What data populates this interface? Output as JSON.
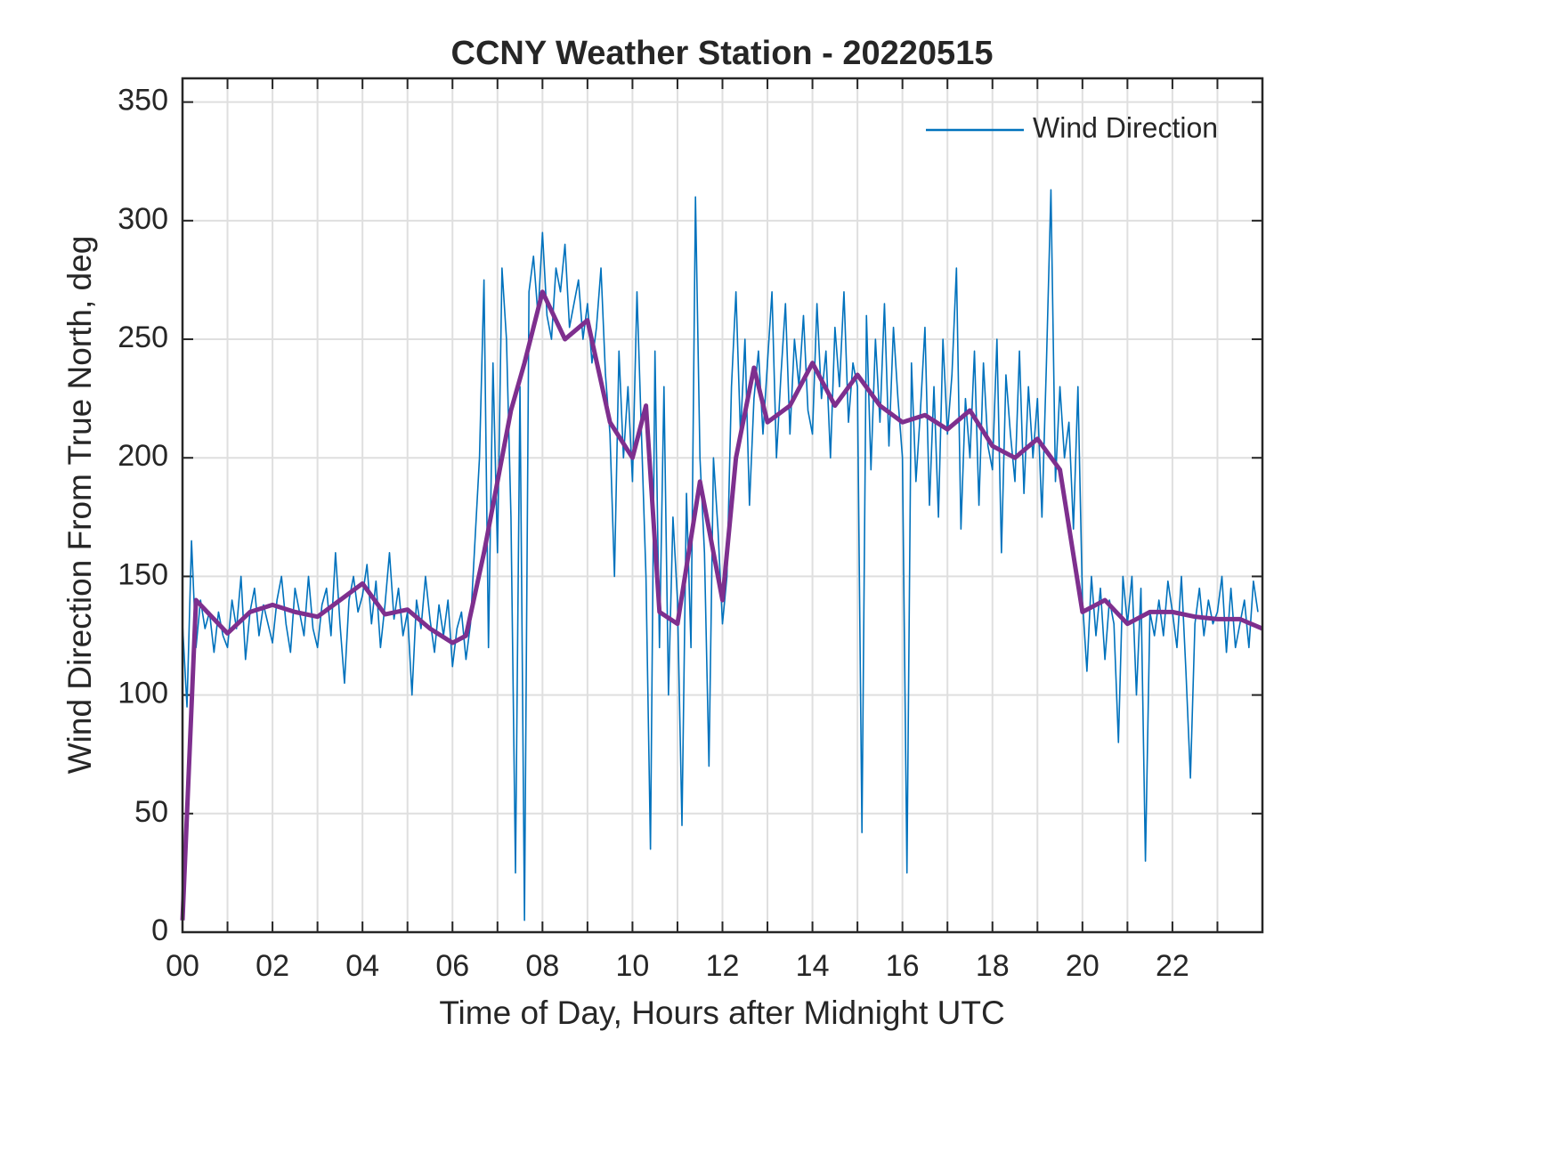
{
  "chart_data": {
    "type": "line",
    "title": "CCNY Weather Station - 20220515",
    "xlabel": "Time of Day, Hours after Midnight UTC",
    "ylabel": "Wind Direction From True North, deg",
    "xlim": [
      0,
      24
    ],
    "ylim": [
      0,
      360
    ],
    "xticks": [
      {
        "value": 0,
        "label": "00"
      },
      {
        "value": 2,
        "label": "02"
      },
      {
        "value": 4,
        "label": "04"
      },
      {
        "value": 6,
        "label": "06"
      },
      {
        "value": 8,
        "label": "08"
      },
      {
        "value": 10,
        "label": "10"
      },
      {
        "value": 12,
        "label": "12"
      },
      {
        "value": 14,
        "label": "14"
      },
      {
        "value": 16,
        "label": "16"
      },
      {
        "value": 18,
        "label": "18"
      },
      {
        "value": 20,
        "label": "20"
      },
      {
        "value": 22,
        "label": "22"
      }
    ],
    "xminorticks": [
      1,
      3,
      5,
      7,
      9,
      11,
      13,
      15,
      17,
      19,
      21,
      23
    ],
    "yticks": [
      0,
      50,
      100,
      150,
      200,
      250,
      300,
      350
    ],
    "grid": true,
    "legend": "northeast",
    "series": [
      {
        "name": "Wind Direction",
        "color": "#0072bd",
        "x": [
          0,
          0.1,
          0.2,
          0.3,
          0.4,
          0.5,
          0.6,
          0.7,
          0.8,
          0.9,
          1,
          1.1,
          1.2,
          1.3,
          1.4,
          1.5,
          1.6,
          1.7,
          1.8,
          1.9,
          2,
          2.1,
          2.2,
          2.3,
          2.4,
          2.5,
          2.6,
          2.7,
          2.8,
          2.9,
          3,
          3.1,
          3.2,
          3.3,
          3.4,
          3.5,
          3.6,
          3.7,
          3.8,
          3.9,
          4,
          4.1,
          4.2,
          4.3,
          4.4,
          4.5,
          4.6,
          4.7,
          4.8,
          4.9,
          5,
          5.1,
          5.2,
          5.3,
          5.4,
          5.5,
          5.6,
          5.7,
          5.8,
          5.9,
          6,
          6.1,
          6.2,
          6.3,
          6.4,
          6.5,
          6.6,
          6.7,
          6.8,
          6.9,
          7,
          7.1,
          7.2,
          7.3,
          7.4,
          7.5,
          7.6,
          7.7,
          7.8,
          7.9,
          8,
          8.1,
          8.2,
          8.3,
          8.4,
          8.5,
          8.6,
          8.7,
          8.8,
          8.9,
          9,
          9.1,
          9.2,
          9.3,
          9.4,
          9.5,
          9.6,
          9.7,
          9.8,
          9.9,
          10,
          10.1,
          10.2,
          10.3,
          10.4,
          10.5,
          10.6,
          10.7,
          10.8,
          10.9,
          11,
          11.1,
          11.2,
          11.3,
          11.4,
          11.5,
          11.6,
          11.7,
          11.8,
          11.9,
          12,
          12.1,
          12.2,
          12.3,
          12.4,
          12.5,
          12.6,
          12.7,
          12.8,
          12.9,
          13,
          13.1,
          13.2,
          13.3,
          13.4,
          13.5,
          13.6,
          13.7,
          13.8,
          13.9,
          14,
          14.1,
          14.2,
          14.3,
          14.4,
          14.5,
          14.6,
          14.7,
          14.8,
          14.9,
          15,
          15.1,
          15.2,
          15.3,
          15.4,
          15.5,
          15.6,
          15.7,
          15.8,
          15.9,
          16,
          16.1,
          16.2,
          16.3,
          16.4,
          16.5,
          16.6,
          16.7,
          16.8,
          16.9,
          17,
          17.1,
          17.2,
          17.3,
          17.4,
          17.5,
          17.6,
          17.7,
          17.8,
          17.9,
          18,
          18.1,
          18.2,
          18.3,
          18.4,
          18.5,
          18.6,
          18.7,
          18.8,
          18.9,
          19,
          19.1,
          19.2,
          19.3,
          19.4,
          19.5,
          19.6,
          19.7,
          19.8,
          19.9,
          20,
          20.1,
          20.2,
          20.3,
          20.4,
          20.5,
          20.6,
          20.7,
          20.8,
          20.9,
          21,
          21.1,
          21.2,
          21.3,
          21.4,
          21.5,
          21.6,
          21.7,
          21.8,
          21.9,
          22,
          22.1,
          22.2,
          22.3,
          22.4,
          22.5,
          22.6,
          22.7,
          22.8,
          22.9,
          23,
          23.1,
          23.2,
          23.3,
          23.4,
          23.5,
          23.6,
          23.7,
          23.8,
          23.9
        ],
        "values": [
          130,
          95,
          165,
          120,
          140,
          128,
          135,
          118,
          135,
          125,
          120,
          140,
          128,
          150,
          115,
          135,
          145,
          125,
          138,
          130,
          122,
          140,
          150,
          130,
          118,
          145,
          135,
          125,
          150,
          128,
          120,
          138,
          145,
          125,
          160,
          130,
          105,
          140,
          150,
          135,
          142,
          155,
          130,
          148,
          120,
          138,
          160,
          132,
          145,
          125,
          135,
          100,
          140,
          128,
          150,
          132,
          118,
          138,
          125,
          140,
          112,
          128,
          135,
          115,
          130,
          165,
          200,
          275,
          120,
          240,
          160,
          280,
          250,
          175,
          25,
          230,
          5,
          270,
          285,
          260,
          295,
          260,
          250,
          280,
          270,
          290,
          255,
          265,
          275,
          250,
          265,
          240,
          255,
          280,
          235,
          210,
          150,
          245,
          200,
          230,
          190,
          270,
          210,
          150,
          35,
          245,
          120,
          230,
          100,
          175,
          140,
          45,
          185,
          120,
          310,
          200,
          160,
          70,
          200,
          170,
          130,
          150,
          230,
          270,
          210,
          250,
          180,
          225,
          245,
          210,
          240,
          270,
          200,
          235,
          265,
          210,
          250,
          230,
          260,
          220,
          210,
          265,
          225,
          245,
          200,
          255,
          230,
          270,
          215,
          240,
          230,
          42,
          260,
          195,
          250,
          215,
          265,
          205,
          255,
          225,
          200,
          25,
          240,
          190,
          220,
          255,
          180,
          230,
          175,
          250,
          210,
          235,
          280,
          170,
          225,
          200,
          245,
          180,
          240,
          205,
          195,
          250,
          160,
          235,
          210,
          190,
          245,
          185,
          230,
          200,
          225,
          175,
          240,
          313,
          190,
          230,
          200,
          215,
          170,
          230,
          140,
          110,
          150,
          125,
          145,
          115,
          140,
          130,
          80,
          150,
          130,
          150,
          100,
          145,
          30,
          135,
          125,
          140,
          125,
          148,
          135,
          120,
          150,
          110,
          65,
          130,
          145,
          125,
          140,
          130,
          135,
          150,
          118,
          145,
          120,
          130,
          140,
          120,
          148,
          135
        ]
      },
      {
        "color": "#7e2f8e",
        "x": [
          0,
          0.3,
          1,
          1.5,
          2,
          2.5,
          3,
          3.5,
          4,
          4.5,
          5,
          5.5,
          6,
          6.3,
          6.7,
          7,
          7.3,
          7.6,
          8,
          8.5,
          9,
          9.5,
          10,
          10.3,
          10.6,
          11,
          11.5,
          12,
          12.3,
          12.7,
          13,
          13.5,
          14,
          14.5,
          15,
          15.5,
          16,
          16.5,
          17,
          17.5,
          18,
          18.5,
          19,
          19.5,
          20,
          20.5,
          21,
          21.5,
          22,
          22.5,
          23,
          23.5,
          24
        ],
        "values": [
          5,
          140,
          126,
          135,
          138,
          135,
          133,
          140,
          147,
          134,
          136,
          128,
          122,
          125,
          160,
          190,
          220,
          240,
          270,
          250,
          258,
          215,
          200,
          222,
          135,
          130,
          190,
          140,
          200,
          238,
          215,
          222,
          240,
          222,
          235,
          222,
          215,
          218,
          212,
          220,
          205,
          200,
          208,
          195,
          135,
          140,
          130,
          135,
          135,
          133,
          132,
          132,
          128
        ]
      }
    ]
  }
}
